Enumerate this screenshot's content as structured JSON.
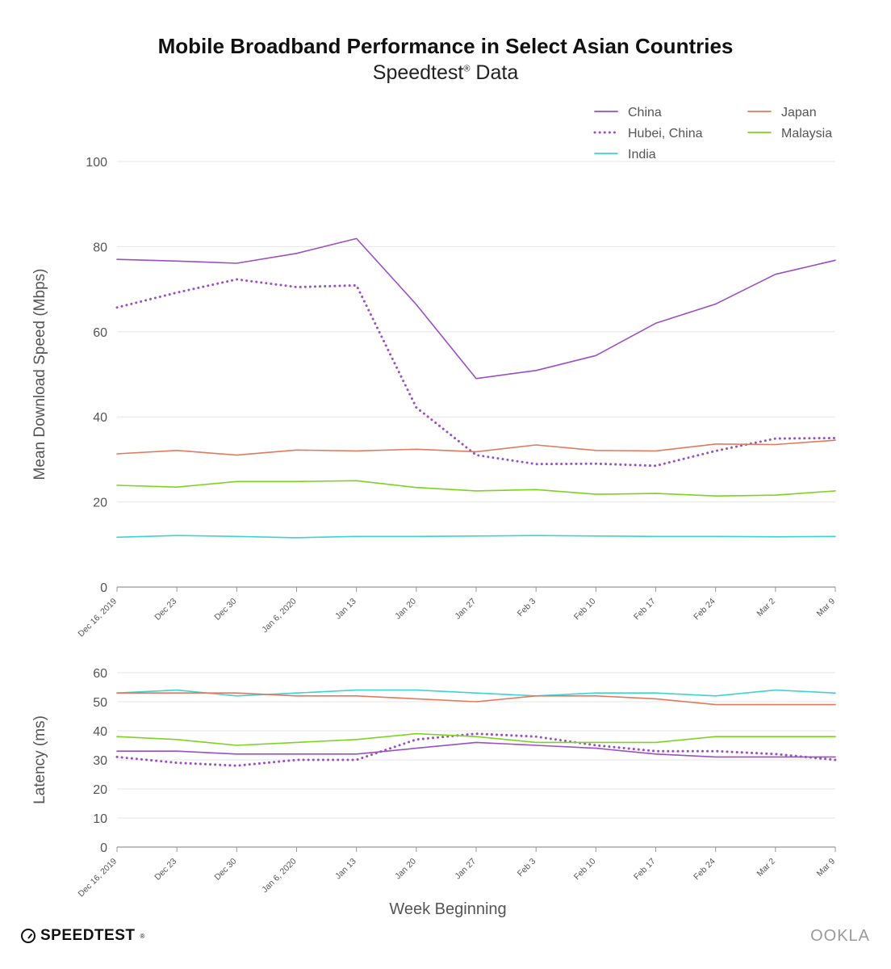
{
  "header": {
    "title": "Mobile Broadband Performance in Select Asian Countries",
    "subtitle": "Speedtest",
    "subtitle_mark": "®",
    "subtitle_suffix": " Data"
  },
  "footer": {
    "left_logo": "SPEEDTEST",
    "left_logo_mark": "®",
    "right_logo": "OOKLA"
  },
  "colors": {
    "China": "#9b4fc4",
    "Hubei, China": "#9b4fc4",
    "India": "#3dd3d3",
    "Japan": "#e07a5f",
    "Malaysia": "#7ed321",
    "grid": "#e6e6e6",
    "axis": "#999999"
  },
  "chart_data": [
    {
      "type": "line",
      "title": "Mobile Broadband Performance in Select Asian Countries",
      "subtitle": "Speedtest® Data",
      "ylabel": "Mean Download Speed (Mbps)",
      "xlabel": "",
      "ylim": [
        0,
        100
      ],
      "yticks": [
        0,
        20,
        40,
        60,
        80,
        100
      ],
      "grid": true,
      "legend": "top-right",
      "categories": [
        "Dec 16, 2019",
        "Dec 23",
        "Dec 30",
        "Jan 6, 2020",
        "Jan 13",
        "Jan 20",
        "Jan 27",
        "Feb 3",
        "Feb 10",
        "Feb 17",
        "Feb 24",
        "Mar 2",
        "Mar 9"
      ],
      "series": [
        {
          "name": "China",
          "style": "solid",
          "values": [
            77,
            76.6,
            76.1,
            78.4,
            81.9,
            66.4,
            49,
            50.9,
            54.4,
            62,
            66.5,
            73.5,
            76.8
          ]
        },
        {
          "name": "Hubei, China",
          "style": "dotted",
          "values": [
            65.7,
            69.2,
            72.3,
            70.5,
            70.9,
            42.2,
            31,
            28.9,
            29,
            28.5,
            32,
            34.9,
            35
          ]
        },
        {
          "name": "India",
          "style": "solid",
          "values": [
            11.7,
            12.1,
            11.9,
            11.6,
            11.9,
            11.9,
            12,
            12.1,
            12,
            11.9,
            11.9,
            11.8,
            11.9
          ]
        },
        {
          "name": "Japan",
          "style": "solid",
          "values": [
            31.3,
            32.1,
            31,
            32.2,
            32,
            32.4,
            31.8,
            33.4,
            32.1,
            32,
            33.6,
            33.5,
            34.5
          ]
        },
        {
          "name": "Malaysia",
          "style": "solid",
          "values": [
            23.9,
            23.5,
            24.8,
            24.8,
            25,
            23.4,
            22.6,
            22.9,
            21.8,
            22,
            21.4,
            21.6,
            22.6
          ]
        }
      ]
    },
    {
      "type": "line",
      "title": "",
      "ylabel": "Latency (ms)",
      "xlabel": "Week Beginning",
      "ylim": [
        0,
        60
      ],
      "yticks": [
        0,
        10,
        20,
        30,
        40,
        50,
        60
      ],
      "grid": true,
      "categories": [
        "Dec 16, 2019",
        "Dec 23",
        "Dec 30",
        "Jan 6, 2020",
        "Jan 13",
        "Jan 20",
        "Jan 27",
        "Feb 3",
        "Feb 10",
        "Feb 17",
        "Feb 24",
        "Mar 2",
        "Mar 9"
      ],
      "series": [
        {
          "name": "China",
          "style": "solid",
          "values": [
            33,
            33,
            32,
            32,
            32,
            34,
            36,
            35,
            34,
            32,
            31,
            31,
            31
          ]
        },
        {
          "name": "Hubei, China",
          "style": "dotted",
          "values": [
            31,
            29,
            28,
            30,
            30,
            37,
            39,
            38,
            35,
            33,
            33,
            32,
            30
          ]
        },
        {
          "name": "India",
          "style": "solid",
          "values": [
            53,
            54,
            52,
            53,
            54,
            54,
            53,
            52,
            53,
            53,
            52,
            54,
            53
          ]
        },
        {
          "name": "Japan",
          "style": "solid",
          "values": [
            53,
            53,
            53,
            52,
            52,
            51,
            50,
            52,
            52,
            51,
            49,
            49,
            49
          ]
        },
        {
          "name": "Malaysia",
          "style": "solid",
          "values": [
            38,
            37,
            35,
            36,
            37,
            39,
            38,
            36,
            36,
            36,
            38,
            38,
            38
          ]
        }
      ]
    }
  ]
}
